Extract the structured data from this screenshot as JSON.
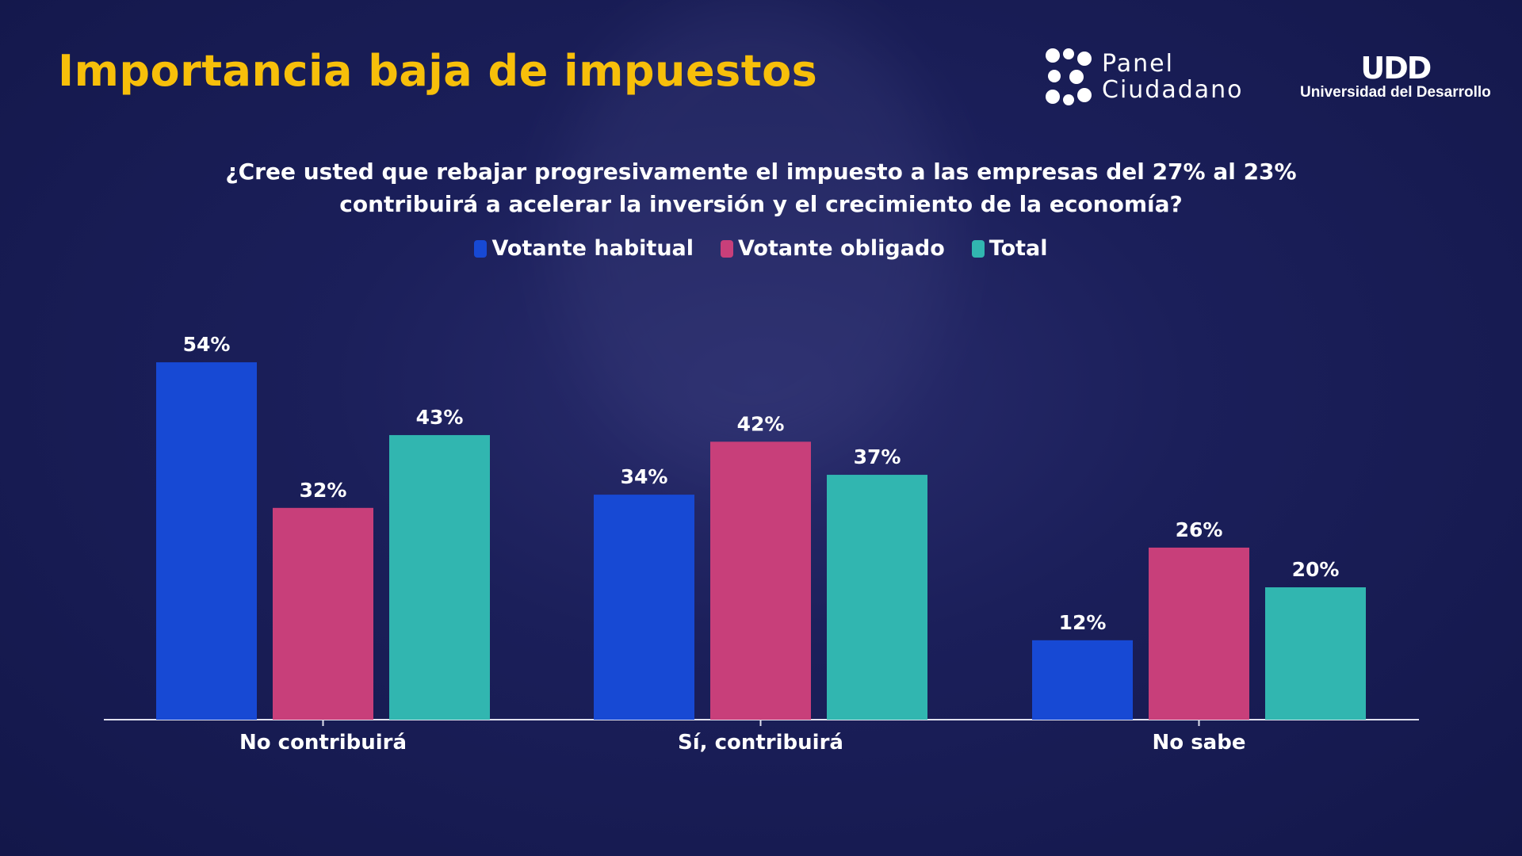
{
  "title": "Importancia baja de impuestos",
  "logos": {
    "panel_line1": "Panel",
    "panel_line2": "Ciudadano",
    "udd_mark": "UDD",
    "udd_name": "Universidad del Desarrollo"
  },
  "chart_data": {
    "type": "bar",
    "title": "¿Cree usted que rebajar progresivamente el impuesto a las empresas del 27% al 23% contribuirá a acelerar la inversión y el crecimiento de la economía?",
    "categories": [
      "No contribuirá",
      "Sí, contribuirá",
      "No sabe"
    ],
    "series": [
      {
        "name": "Votante habitual",
        "color": "#1749d4",
        "values": [
          54,
          34,
          12
        ],
        "labels": [
          "54%",
          "34%",
          "12%"
        ]
      },
      {
        "name": "Votante obligado",
        "color": "#c83f7a",
        "values": [
          32,
          42,
          26
        ],
        "labels": [
          "32%",
          "42%",
          "26%"
        ]
      },
      {
        "name": "Total",
        "color": "#31b6b0",
        "values": [
          43,
          37,
          20
        ],
        "labels": [
          "43%",
          "37%",
          "20%"
        ]
      }
    ],
    "unit": "%",
    "ylim": [
      0,
      60
    ],
    "grid": false,
    "legend": "top"
  }
}
